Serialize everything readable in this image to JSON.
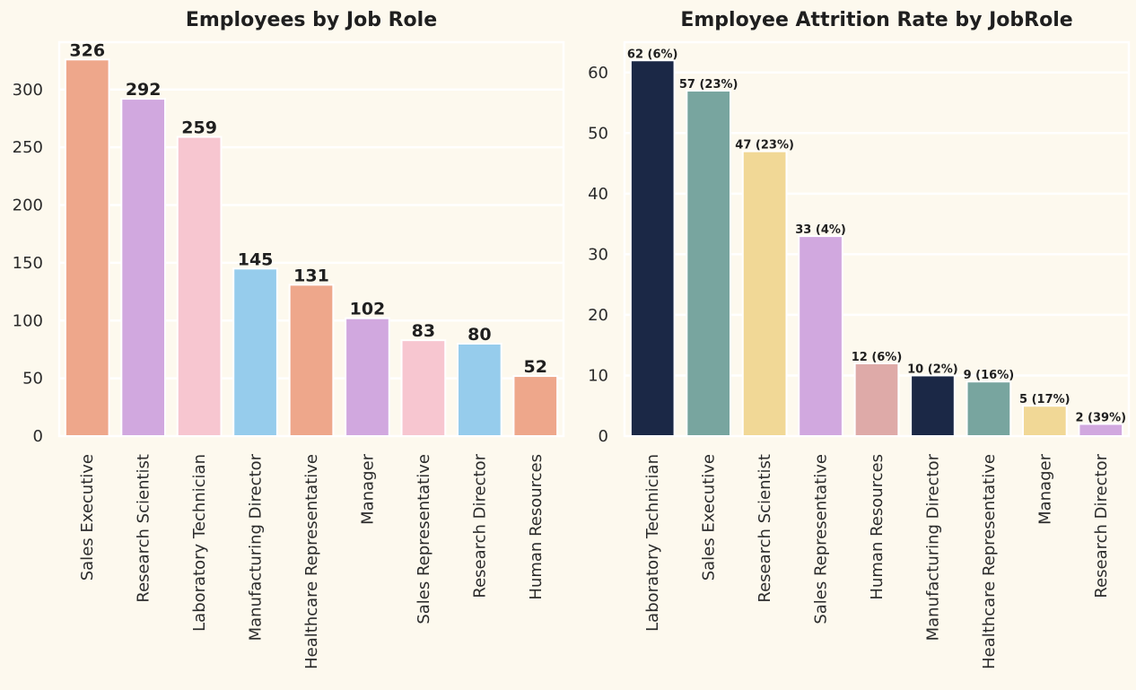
{
  "chart_data": [
    {
      "type": "bar",
      "title": "Employees by Job Role",
      "xlabel": "",
      "ylabel": "",
      "ylim": [
        0,
        341
      ],
      "yticks": [
        0,
        50,
        100,
        150,
        200,
        250,
        300
      ],
      "grid": true,
      "categories": [
        "Sales Executive",
        "Research Scientist",
        "Laboratory Technician",
        "Manufacturing Director",
        "Healthcare Representative",
        "Manager",
        "Sales Representative",
        "Research Director",
        "Human Resources"
      ],
      "values": [
        326,
        292,
        259,
        145,
        131,
        102,
        83,
        80,
        52
      ],
      "data_labels": [
        "326",
        "292",
        "259",
        "145",
        "131",
        "102",
        "83",
        "80",
        "52"
      ],
      "colors": [
        "#eea78b",
        "#d1a8df",
        "#f7c6d0",
        "#96ccec",
        "#eea78b",
        "#d1a8df",
        "#f7c6d0",
        "#96ccec",
        "#eea78b"
      ]
    },
    {
      "type": "bar",
      "title": "Employee Attrition Rate by JobRole",
      "xlabel": "",
      "ylabel": "",
      "ylim": [
        0,
        65
      ],
      "yticks": [
        0,
        10,
        20,
        30,
        40,
        50,
        60
      ],
      "grid": true,
      "categories": [
        "Laboratory Technician",
        "Sales Executive",
        "Research Scientist",
        "Sales Representative",
        "Human Resources",
        "Manufacturing Director",
        "Healthcare Representative",
        "Manager",
        "Research Director"
      ],
      "values": [
        62,
        57,
        47,
        33,
        12,
        10,
        9,
        5,
        2
      ],
      "data_labels": [
        "62 (6%)",
        "57 (23%)",
        "47 (23%)",
        "33 (4%)",
        "12 (6%)",
        "10 (2%)",
        "9 (16%)",
        "5 (17%)",
        "2 (39%)"
      ],
      "colors": [
        "#1b2846",
        "#78a59f",
        "#f1d896",
        "#d1a8df",
        "#deaaa8",
        "#1b2846",
        "#78a59f",
        "#f1d896",
        "#d1a8df"
      ]
    }
  ]
}
